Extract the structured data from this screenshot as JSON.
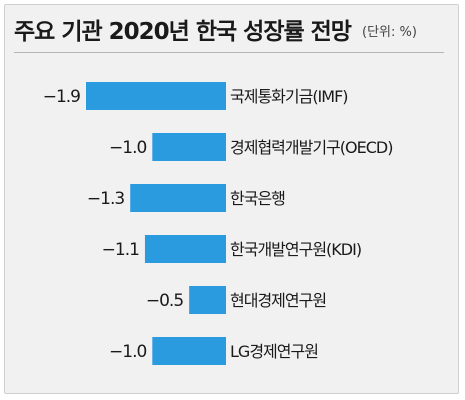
{
  "title": "주요 기관 2020년 한국 성장률 전망",
  "unit": "(단위: %)",
  "colors": {
    "bar": "#2b9be0",
    "background": "#f1f1f1",
    "text": "#1a1a1a"
  },
  "chart_data": {
    "type": "bar",
    "orientation": "horizontal",
    "title": "주요 기관 2020년 한국 성장률 전망",
    "unit": "(단위: %)",
    "categories": [
      "국제통화기금(IMF)",
      "경제협력개발기구(OECD)",
      "한국은행",
      "한국개발연구원(KDI)",
      "현대경제연구원",
      "LG경제연구원"
    ],
    "value_labels": [
      "−1.9",
      "−1.0",
      "−1.3",
      "−1.1",
      "−0.5",
      "−1.0"
    ],
    "values": [
      -1.9,
      -1.0,
      -1.3,
      -1.1,
      -0.5,
      -1.0
    ],
    "xlim": [
      -1.9,
      0
    ],
    "grid": false,
    "legend": "none"
  }
}
